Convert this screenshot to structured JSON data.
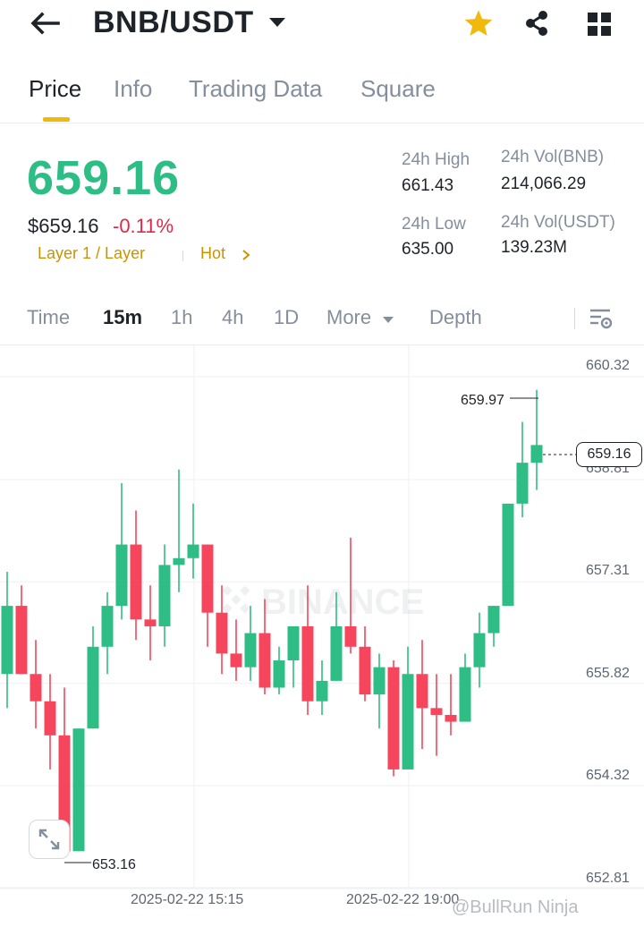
{
  "header": {
    "title": "BNB/USDT",
    "back_icon": "arrow-left-icon",
    "dropdown_icon": "caret-down-icon",
    "star_icon": "star-icon",
    "share_icon": "share-icon",
    "grid_icon": "grid-icon"
  },
  "tabs": [
    {
      "label": "Price",
      "active": true
    },
    {
      "label": "Info",
      "active": false
    },
    {
      "label": "Trading Data",
      "active": false
    },
    {
      "label": "Square",
      "active": false
    }
  ],
  "price": {
    "last": "659.16",
    "usd": "$659.16",
    "change": "-0.11%",
    "tag1": "Layer 1 / Layer",
    "tag2": "Hot",
    "tag2_icon": "chevron-right-icon"
  },
  "stats": {
    "high_label": "24h High",
    "high_value": "661.43",
    "low_label": "24h Low",
    "low_value": "635.00",
    "vol_bnb_label": "24h Vol(BNB)",
    "vol_bnb_value": "214,066.29",
    "vol_usdt_label": "24h Vol(USDT)",
    "vol_usdt_value": "139.23M"
  },
  "intervals": {
    "items": [
      "Time",
      "15m",
      "1h",
      "4h",
      "1D"
    ],
    "active": "15m",
    "more": "More",
    "depth": "Depth",
    "settings_icon": "chart-settings-icon"
  },
  "colors": {
    "up": "#2ebd85",
    "down": "#f6465d",
    "accent": "#f0b90b",
    "red_text": "#e0294a"
  },
  "chart": {
    "watermark": "BINANCE",
    "current_price_label": "659.16",
    "max_label": "659.97",
    "min_label": "653.16",
    "expand_icon": "expand-icon",
    "footer_watermark": "@BullRun Ninja"
  },
  "chart_data": {
    "type": "candlestick",
    "y_ticks": [
      "660.32",
      "658.81",
      "657.31",
      "655.82",
      "654.32",
      "652.81"
    ],
    "ylim": [
      652.81,
      660.32
    ],
    "x_ticks": [
      "2025-02-22 15:15",
      "2025-02-22 19:00"
    ],
    "current_price": 659.16,
    "period_high": 659.97,
    "period_low": 653.16,
    "candles": [
      {
        "o": 655.8,
        "h": 657.3,
        "l": 655.3,
        "c": 656.8
      },
      {
        "o": 656.8,
        "h": 657.1,
        "l": 655.8,
        "c": 655.8
      },
      {
        "o": 655.8,
        "h": 656.3,
        "l": 655.0,
        "c": 655.4
      },
      {
        "o": 655.4,
        "h": 655.8,
        "l": 654.4,
        "c": 654.9
      },
      {
        "o": 654.9,
        "h": 655.6,
        "l": 653.2,
        "c": 653.2
      },
      {
        "o": 653.2,
        "h": 655.0,
        "l": 653.2,
        "c": 655.0
      },
      {
        "o": 655.0,
        "h": 656.5,
        "l": 655.0,
        "c": 656.2
      },
      {
        "o": 656.2,
        "h": 657.0,
        "l": 655.8,
        "c": 656.8
      },
      {
        "o": 656.8,
        "h": 658.6,
        "l": 656.6,
        "c": 657.7
      },
      {
        "o": 657.7,
        "h": 658.2,
        "l": 656.3,
        "c": 656.6
      },
      {
        "o": 656.6,
        "h": 657.1,
        "l": 656.0,
        "c": 656.5
      },
      {
        "o": 656.5,
        "h": 657.7,
        "l": 656.2,
        "c": 657.4
      },
      {
        "o": 657.4,
        "h": 658.8,
        "l": 657.0,
        "c": 657.5
      },
      {
        "o": 657.5,
        "h": 658.3,
        "l": 657.2,
        "c": 657.7
      },
      {
        "o": 657.7,
        "h": 657.7,
        "l": 656.2,
        "c": 656.7
      },
      {
        "o": 656.7,
        "h": 657.1,
        "l": 655.8,
        "c": 656.1
      },
      {
        "o": 656.1,
        "h": 656.6,
        "l": 655.7,
        "c": 655.9
      },
      {
        "o": 655.9,
        "h": 656.8,
        "l": 655.7,
        "c": 656.4
      },
      {
        "o": 656.4,
        "h": 656.9,
        "l": 655.5,
        "c": 655.6
      },
      {
        "o": 655.6,
        "h": 656.2,
        "l": 655.5,
        "c": 656.0
      },
      {
        "o": 656.0,
        "h": 656.5,
        "l": 655.6,
        "c": 656.5
      },
      {
        "o": 656.5,
        "h": 657.1,
        "l": 655.2,
        "c": 655.4
      },
      {
        "o": 655.4,
        "h": 656.0,
        "l": 655.2,
        "c": 655.7
      },
      {
        "o": 655.7,
        "h": 657.0,
        "l": 655.7,
        "c": 656.5
      },
      {
        "o": 656.5,
        "h": 657.8,
        "l": 656.1,
        "c": 656.2
      },
      {
        "o": 656.2,
        "h": 656.5,
        "l": 655.4,
        "c": 655.5
      },
      {
        "o": 655.5,
        "h": 656.1,
        "l": 655.0,
        "c": 655.9
      },
      {
        "o": 655.9,
        "h": 656.0,
        "l": 654.3,
        "c": 654.4
      },
      {
        "o": 654.4,
        "h": 656.2,
        "l": 654.4,
        "c": 655.8
      },
      {
        "o": 655.8,
        "h": 656.3,
        "l": 654.7,
        "c": 655.3
      },
      {
        "o": 655.3,
        "h": 655.8,
        "l": 654.6,
        "c": 655.2
      },
      {
        "o": 655.2,
        "h": 655.8,
        "l": 654.9,
        "c": 655.1
      },
      {
        "o": 655.1,
        "h": 656.1,
        "l": 655.1,
        "c": 655.9
      },
      {
        "o": 655.9,
        "h": 656.7,
        "l": 655.6,
        "c": 656.4
      },
      {
        "o": 656.4,
        "h": 656.8,
        "l": 656.2,
        "c": 656.8
      },
      {
        "o": 656.8,
        "h": 658.3,
        "l": 656.8,
        "c": 658.3
      },
      {
        "o": 658.3,
        "h": 659.5,
        "l": 658.1,
        "c": 658.9
      },
      {
        "o": 658.9,
        "h": 659.97,
        "l": 658.5,
        "c": 659.16
      }
    ]
  }
}
